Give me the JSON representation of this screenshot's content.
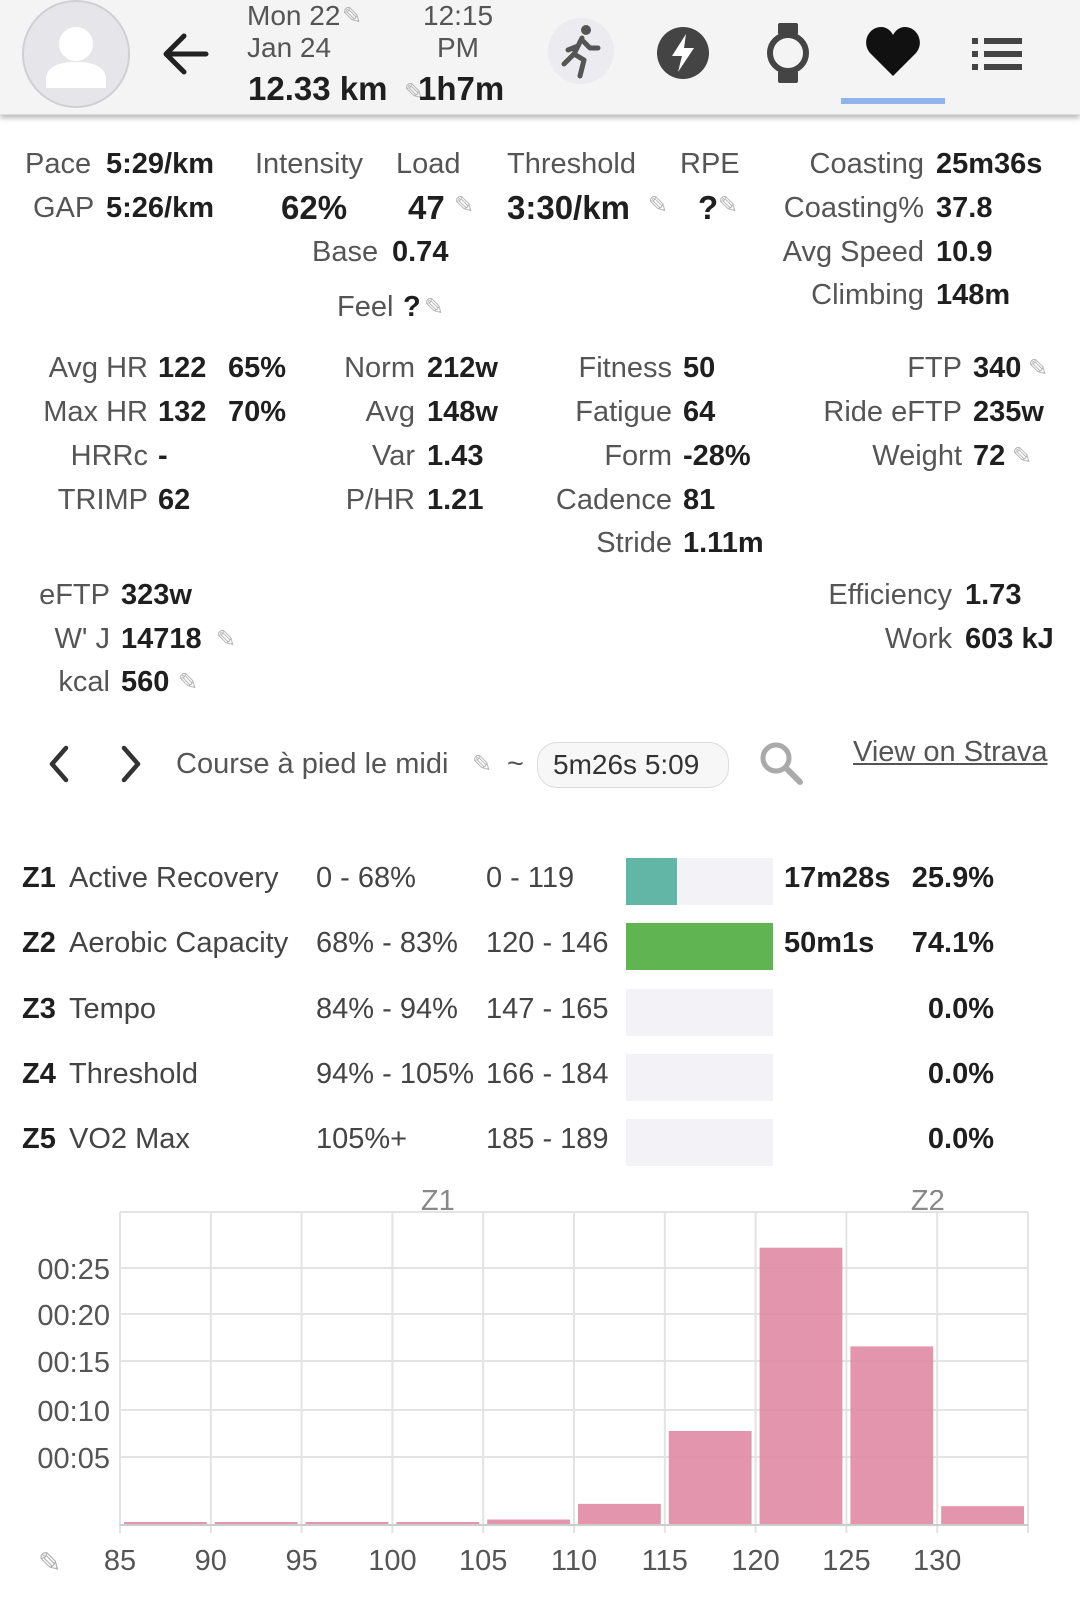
{
  "header": {
    "date_line1": "Mon 22",
    "date_line2": "Jan 24",
    "time_line1": "12:15",
    "time_line2": "PM",
    "distance": "12.33 km",
    "duration": "1h7m",
    "icons": [
      "avatar-icon",
      "back-arrow-icon",
      "run-icon",
      "lightning-icon",
      "watch-icon",
      "heart-icon",
      "list-icon"
    ]
  },
  "summary": {
    "pace_label": "Pace",
    "pace_value": "5:29/km",
    "gap_label": "GAP",
    "gap_value": "5:26/km",
    "intensity_label": "Intensity",
    "intensity_value": "62%",
    "load_label": "Load",
    "load_value": "47",
    "threshold_label": "Threshold",
    "threshold_value": "3:30/km",
    "rpe_label": "RPE",
    "rpe_value": "?",
    "base_label": "Base",
    "base_value": "0.74",
    "feel_label": "Feel",
    "feel_value": "?",
    "coasting_label": "Coasting",
    "coasting_value": "25m36s",
    "coasting_pct_label": "Coasting%",
    "coasting_pct_value": "37.8",
    "avg_speed_label": "Avg Speed",
    "avg_speed_value": "10.9",
    "climbing_label": "Climbing",
    "climbing_value": "148m"
  },
  "metrics": {
    "avg_hr_label": "Avg HR",
    "avg_hr_value": "122",
    "avg_hr_pct": "65%",
    "max_hr_label": "Max HR",
    "max_hr_value": "132",
    "max_hr_pct": "70%",
    "hrrc_label": "HRRc",
    "hrrc_value": "-",
    "trimp_label": "TRIMP",
    "trimp_value": "62",
    "norm_label": "Norm",
    "norm_value": "212w",
    "avg_label": "Avg",
    "avg_value": "148w",
    "var_label": "Var",
    "var_value": "1.43",
    "phr_label": "P/HR",
    "phr_value": "1.21",
    "fitness_label": "Fitness",
    "fitness_value": "50",
    "fatigue_label": "Fatigue",
    "fatigue_value": "64",
    "form_label": "Form",
    "form_value": "-28%",
    "cadence_label": "Cadence",
    "cadence_value": "81",
    "stride_label": "Stride",
    "stride_value": "1.11m",
    "ftp_label": "FTP",
    "ftp_value": "340",
    "ride_eftp_label": "Ride eFTP",
    "ride_eftp_value": "235w",
    "weight_label": "Weight",
    "weight_value": "72",
    "eftp_label": "eFTP",
    "eftp_value": "323w",
    "wj_label": "W' J",
    "wj_value": "14718",
    "kcal_label": "kcal",
    "kcal_value": "560",
    "efficiency_label": "Efficiency",
    "efficiency_value": "1.73",
    "work_label": "Work",
    "work_value": "603 kJ"
  },
  "nav": {
    "activity_name": "Course à pied le midi",
    "tilde": "~",
    "interval_chip": "5m26s 5:09",
    "strava_link": "View on Strava"
  },
  "zones": [
    {
      "code": "Z1",
      "name": "Active Recovery",
      "pct": "0 - 68%",
      "hr": "0 - 119",
      "time": "17m28s",
      "share": "25.9%",
      "fill": 0.349,
      "color": "#62b6a5"
    },
    {
      "code": "Z2",
      "name": "Aerobic Capacity",
      "pct": "68% - 83%",
      "hr": "120 - 146",
      "time": "50m1s",
      "share": "74.1%",
      "fill": 1.0,
      "color": "#61b452"
    },
    {
      "code": "Z3",
      "name": "Tempo",
      "pct": "84% - 94%",
      "hr": "147 - 165",
      "time": "",
      "share": "0.0%",
      "fill": 0,
      "color": "#f0c040"
    },
    {
      "code": "Z4",
      "name": "Threshold",
      "pct": "94% - 105%",
      "hr": "166 - 184",
      "time": "",
      "share": "0.0%",
      "fill": 0,
      "color": "#f08a30"
    },
    {
      "code": "Z5",
      "name": "VO2 Max",
      "pct": "105%+",
      "hr": "185 - 189",
      "time": "",
      "share": "0.0%",
      "fill": 0,
      "color": "#e04040"
    }
  ],
  "chart_data": {
    "type": "bar",
    "x_ticks": [
      "85",
      "90",
      "95",
      "100",
      "105",
      "110",
      "115",
      "120",
      "125",
      "130"
    ],
    "y_ticks": [
      "00:05",
      "00:10",
      "00:15",
      "00:20",
      "00:25"
    ],
    "zone_labels": [
      {
        "name": "Z1"
      },
      {
        "name": "Z2"
      }
    ],
    "bins": [
      {
        "x0": 85,
        "x1": 90,
        "seconds": 5
      },
      {
        "x0": 90,
        "x1": 95,
        "seconds": 5
      },
      {
        "x0": 95,
        "x1": 100,
        "seconds": 5
      },
      {
        "x0": 100,
        "x1": 105,
        "seconds": 10
      },
      {
        "x0": 105,
        "x1": 110,
        "seconds": 35
      },
      {
        "x0": 110,
        "x1": 115,
        "seconds": 135
      },
      {
        "x0": 115,
        "x1": 120,
        "seconds": 600
      },
      {
        "x0": 120,
        "x1": 125,
        "seconds": 1770
      },
      {
        "x0": 125,
        "x1": 130,
        "seconds": 1140
      },
      {
        "x0": 130,
        "x1": 135,
        "seconds": 120
      }
    ],
    "xlim": [
      85,
      135
    ],
    "bar_color": "#e08ca6",
    "edit_icon": "pencil-icon"
  }
}
